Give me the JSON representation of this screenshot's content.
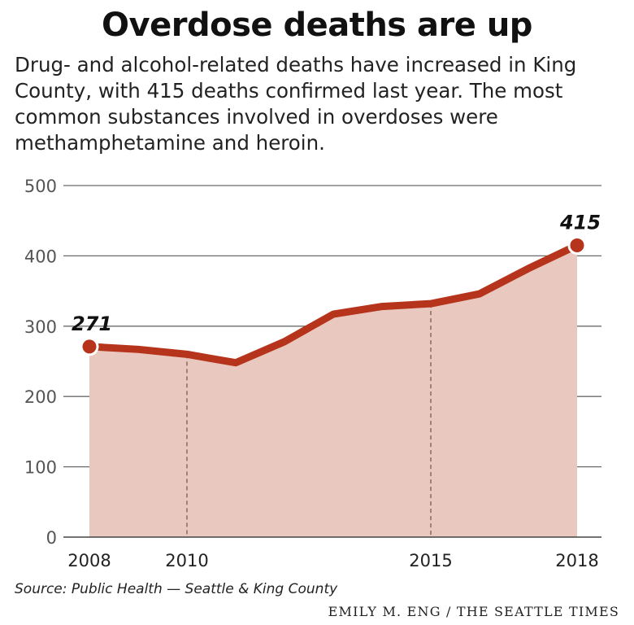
{
  "headline": "Overdose deaths are up",
  "description": "Drug- and alcohol-related deaths have increased in King County, with 415 deaths confirmed last year. The most common substances involved in overdoses were methamphetamine and heroin.",
  "source": "Source: Public Health — Seattle & King County",
  "credit": "EMILY M. ENG / THE SEATTLE TIMES",
  "colors": {
    "line": "#b5341b",
    "fill": "#e9c9bf",
    "grid": "#555555"
  },
  "chart_data": {
    "type": "area",
    "x": [
      2008,
      2009,
      2010,
      2011,
      2012,
      2013,
      2014,
      2015,
      2016,
      2017,
      2018
    ],
    "values": [
      271,
      267,
      260,
      248,
      278,
      317,
      328,
      332,
      346,
      382,
      415
    ],
    "ylim": [
      0,
      500
    ],
    "yticks": [
      0,
      100,
      200,
      300,
      400,
      500
    ],
    "xticks": [
      2008,
      2010,
      2015,
      2018
    ],
    "reference_lines_x": [
      2010,
      2015
    ],
    "annotations": [
      {
        "x": 2008,
        "label": "271"
      },
      {
        "x": 2018,
        "label": "415"
      }
    ],
    "grid": true
  }
}
